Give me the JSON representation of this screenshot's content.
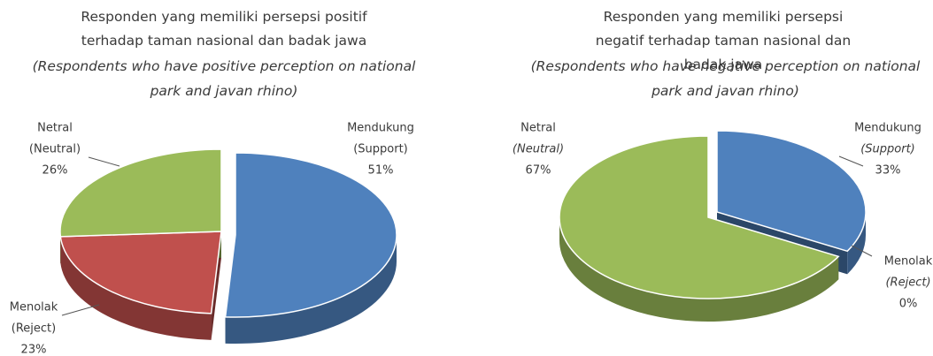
{
  "chart_data": [
    {
      "type": "pie",
      "title": "Responden yang memiliki persepsi positif terhadap taman nasional dan badak jawa",
      "subtitle": "(Respondents who have positive perception on national park and javan rhino)",
      "categories": [
        "Mendukung",
        "Menolak",
        "Netral"
      ],
      "category_translations": [
        "(Support)",
        "(Reject)",
        "(Neutral)"
      ],
      "values": [
        51,
        23,
        26
      ],
      "value_labels": [
        "51%",
        "23%",
        "26%"
      ],
      "colors": [
        "#4f81bd",
        "#c0504d",
        "#9bbb59"
      ]
    },
    {
      "type": "pie",
      "title": "Responden yang memiliki persepsi negatif terhadap taman nasional dan badak jawa",
      "subtitle": "(Respondents who have negative perception on national park and javan rhino)",
      "categories": [
        "Mendukung",
        "Menolak",
        "Netral"
      ],
      "category_translations": [
        "(Support)",
        "(Reject)",
        "(Neutral)"
      ],
      "values": [
        33,
        0,
        67
      ],
      "value_labels": [
        "33%",
        "0%",
        "67%"
      ],
      "colors": [
        "#4f81bd",
        "#c0504d",
        "#9bbb59"
      ]
    }
  ]
}
